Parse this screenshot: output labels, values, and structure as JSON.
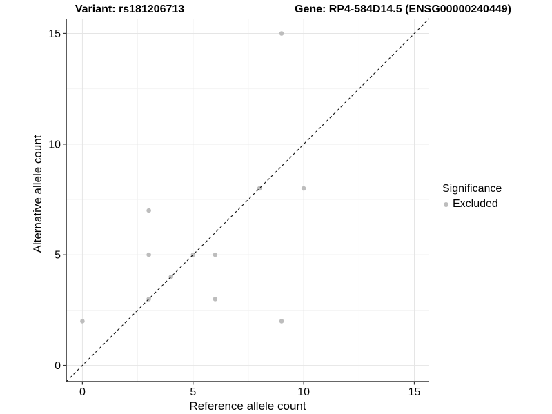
{
  "header": {
    "title_left": "Variant: rs181206713",
    "title_right": "Gene: RP4-584D14.5 (ENSG00000240449)"
  },
  "colors": {
    "point": "#bdbdbd",
    "identity_line": "#1a1a1a",
    "grid_major": "#e5e5e5",
    "grid_minor": "#f2f2f2",
    "axis_line": "#333333",
    "tick_label": "#000000"
  },
  "chart_data": {
    "type": "scatter",
    "titles": {
      "left": "Variant: rs181206713",
      "right": "Gene: RP4-584D14.5 (ENSG00000240449)"
    },
    "xlabel": "Reference allele count",
    "ylabel": "Alternative allele count",
    "xlim": [
      -0.73,
      15.67
    ],
    "ylim": [
      -0.73,
      15.67
    ],
    "x_major_ticks": [
      0,
      5,
      10,
      15
    ],
    "y_major_ticks": [
      0,
      5,
      10,
      15
    ],
    "x_tick_labels": [
      "0",
      "5",
      "10",
      "15"
    ],
    "y_tick_labels": [
      "0",
      "5",
      "10",
      "15"
    ],
    "minor_grid_positions": [
      2.5,
      7.5,
      12.5
    ],
    "grid": "major+minor",
    "series": [
      {
        "name": "Excluded",
        "marker": "circle",
        "color": "#bdbdbd",
        "points": [
          [
            0,
            2
          ],
          [
            3,
            3
          ],
          [
            3,
            5
          ],
          [
            3,
            7
          ],
          [
            4,
            4
          ],
          [
            5,
            5
          ],
          [
            6,
            3
          ],
          [
            6,
            5
          ],
          [
            8,
            8
          ],
          [
            9,
            2
          ],
          [
            9,
            15
          ],
          [
            10,
            8
          ]
        ]
      }
    ],
    "identity_line": {
      "slope": 1,
      "intercept": 0,
      "style": "dashed",
      "color": "#1a1a1a"
    },
    "legend": {
      "title": "Significance",
      "position": "right",
      "items": [
        {
          "label": "Excluded",
          "color": "#bdbdbd",
          "marker": "circle"
        }
      ]
    }
  }
}
